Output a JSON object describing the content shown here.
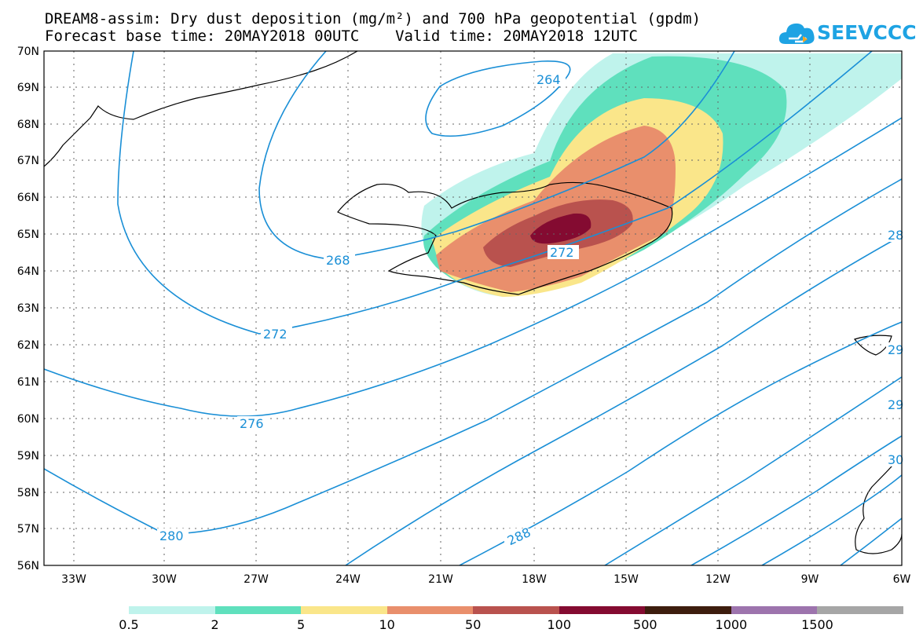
{
  "header": {
    "title": "DREAM8-assim: Dry dust deposition (mg/m²) and 700 hPa geopotential (gpdm)",
    "subtitle": "Forecast base time: 20MAY2018 00UTC    Valid time: 20MAY2018 12UTC"
  },
  "logo": {
    "text": "SEEVCCC",
    "icon": "cloud-icon",
    "color": "#1ea3e3"
  },
  "map": {
    "lon_range": [
      -34.5,
      -6
    ],
    "lat_range": [
      56,
      70
    ],
    "lon_ticks": [
      "33W",
      "30W",
      "27W",
      "24W",
      "21W",
      "18W",
      "15W",
      "12W",
      "9W",
      "6W"
    ],
    "lat_ticks": [
      "70N",
      "69N",
      "68N",
      "67N",
      "66N",
      "65N",
      "64N",
      "63N",
      "62N",
      "61N",
      "60N",
      "59N",
      "58N",
      "57N",
      "56N"
    ],
    "grid": "dotted",
    "contour_color": "#1a8fd6",
    "contour_labels": [
      "264",
      "268",
      "272",
      "272",
      "276",
      "280",
      "288",
      "28",
      "29",
      "29",
      "30"
    ]
  },
  "legend": {
    "labels": [
      "0.5",
      "2",
      "5",
      "10",
      "50",
      "100",
      "500",
      "1000",
      "1500"
    ],
    "colors": [
      "#bff3ec",
      "#5fe0bd",
      "#fae68a",
      "#e98f6c",
      "#b9524e",
      "#840b31",
      "#3d1d0e",
      "#9d74ad",
      "#a6a6a6"
    ]
  }
}
